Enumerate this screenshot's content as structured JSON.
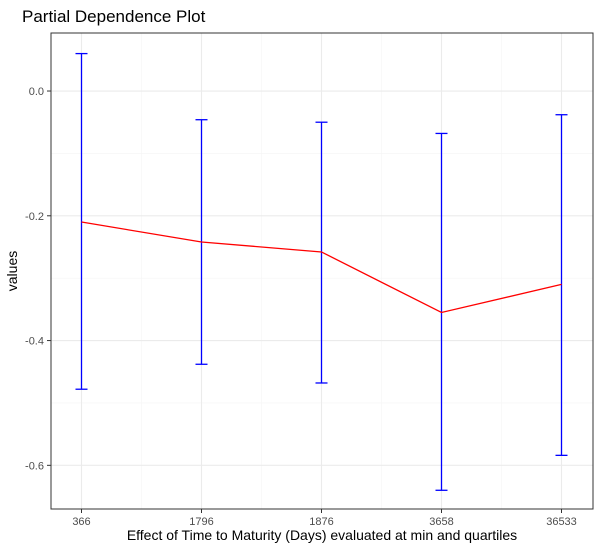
{
  "chart_data": {
    "type": "line",
    "title": "Partial Dependence Plot",
    "xlabel": "Effect of Time to Maturity (Days) evaluated at min and quartiles",
    "ylabel": "values",
    "categories": [
      "366",
      "1796",
      "1876",
      "3658",
      "36533"
    ],
    "series": [
      {
        "values": [
          -0.21,
          -0.242,
          -0.258,
          -0.355,
          -0.31
        ],
        "lower": [
          -0.478,
          -0.438,
          -0.468,
          -0.64,
          -0.584
        ],
        "upper": [
          0.06,
          -0.046,
          -0.05,
          -0.068,
          -0.038
        ],
        "line_color": "#ff0000",
        "errorbar_color": "#0000ff"
      }
    ],
    "ylim": [
      -0.67,
      0.093
    ],
    "yticks": [
      0.0,
      -0.2,
      -0.4,
      -0.6
    ],
    "ytick_labels": [
      "0.0",
      "-0.2",
      "-0.4",
      "-0.6"
    ],
    "grid": true,
    "legend": "none",
    "colors": {
      "panel_border": "#333333",
      "grid_major": "#ebebeb",
      "grid_minor": "#f5f5f5"
    }
  }
}
